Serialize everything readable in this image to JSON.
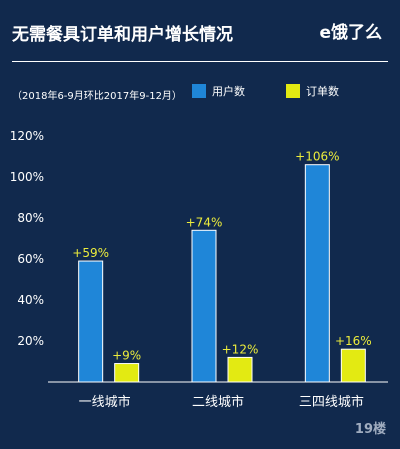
{
  "header": {
    "title": "无需餐具订单和用户增长情况",
    "logo_text": "e饿了么"
  },
  "subtitle": "（2018年6-9月环比2017年9-12月）",
  "watermark": "19楼",
  "colors": {
    "background": "#11294d",
    "users_bar": "#1f86d8",
    "orders_bar": "#e3ea12",
    "label_color": "#ecec3c"
  },
  "chart_data": {
    "type": "bar",
    "categories": [
      "一线城市",
      "二线城市",
      "三四线城市"
    ],
    "series": [
      {
        "name": "用户数",
        "values": [
          59,
          74,
          106
        ],
        "labels": [
          "+59%",
          "+74%",
          "+106%"
        ],
        "color": "#1f86d8"
      },
      {
        "name": "订单数",
        "values": [
          9,
          12,
          16
        ],
        "labels": [
          "+9%",
          "+12%",
          "+16%"
        ],
        "color": "#e3ea12"
      }
    ],
    "yticks": [
      "20%",
      "40%",
      "60%",
      "80%",
      "100%",
      "120%"
    ],
    "ytick_values": [
      20,
      40,
      60,
      80,
      100,
      120
    ],
    "ylim": [
      0,
      120
    ],
    "grid": false,
    "legend_position": "top"
  }
}
